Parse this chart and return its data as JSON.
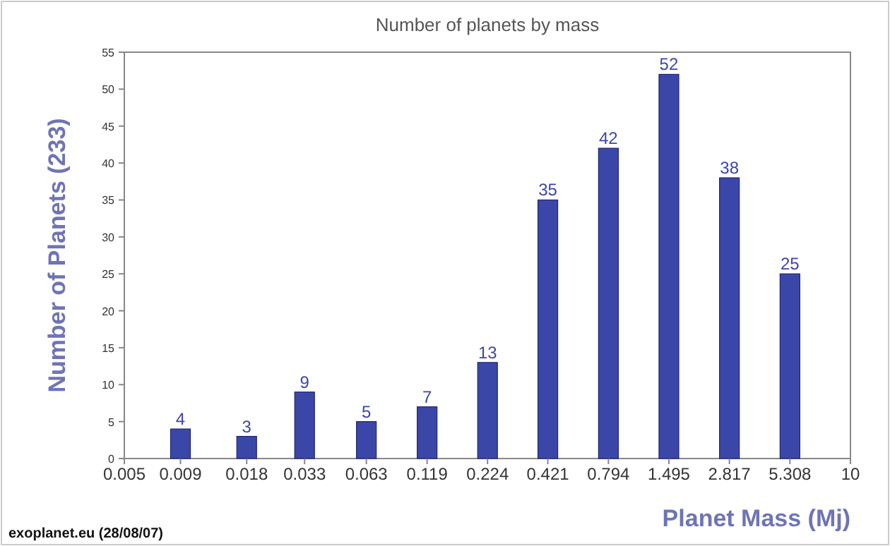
{
  "chart_data": {
    "type": "bar",
    "title": "Number of planets by mass",
    "xlabel": "Planet Mass (Mj)",
    "ylabel": "Number of Planets (233)",
    "x": [
      0.009,
      0.018,
      0.033,
      0.063,
      0.119,
      0.224,
      0.421,
      0.794,
      1.495,
      2.817,
      5.308
    ],
    "values": [
      4,
      3,
      9,
      5,
      7,
      13,
      35,
      42,
      52,
      38,
      25
    ],
    "color": "#3b47a8",
    "data_labels": true,
    "log": "x",
    "xlim": [
      0.005,
      10
    ],
    "xticks": [
      0.005,
      0.009,
      0.018,
      0.033,
      0.063,
      0.119,
      0.224,
      0.421,
      0.794,
      1.495,
      2.817,
      5.308,
      10
    ],
    "ylim": [
      0,
      55
    ],
    "yticks": [
      0,
      5,
      10,
      15,
      20,
      25,
      30,
      35,
      40,
      45,
      50,
      55
    ],
    "annotations": [
      "exoplanet.eu (28/08/07)"
    ]
  }
}
